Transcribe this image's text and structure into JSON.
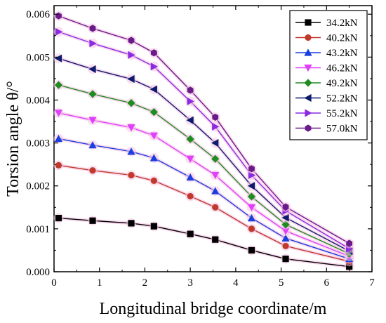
{
  "chart_data": {
    "type": "line",
    "title": "",
    "xlabel": "Longitudinal bridge coordinate/m",
    "ylabel": "Torsion angle θ/°",
    "xlim": [
      0,
      7
    ],
    "ylim": [
      0,
      0.0062
    ],
    "x_ticks": [
      "0",
      "1",
      "2",
      "3",
      "4",
      "5",
      "6",
      "7"
    ],
    "y_ticks": [
      "0.000",
      "0.001",
      "0.002",
      "0.003",
      "0.004",
      "0.005",
      "0.006"
    ],
    "legend_position": "top-right",
    "grid": false,
    "x": [
      0.1,
      0.85,
      1.7,
      2.2,
      3.0,
      3.55,
      4.35,
      5.1,
      6.5
    ],
    "series": [
      {
        "name": "34.2kN",
        "color": "#000000",
        "marker": "square",
        "values": [
          0.00125,
          0.00119,
          0.00113,
          0.00106,
          0.00088,
          0.00075,
          0.0005,
          0.0003,
          0.00012
        ]
      },
      {
        "name": "40.2kN",
        "color": "#c0392b",
        "marker": "circle",
        "values": [
          0.00248,
          0.00236,
          0.00225,
          0.00212,
          0.00176,
          0.0015,
          0.001,
          0.0006,
          0.00024
        ]
      },
      {
        "name": "43.2kN",
        "color": "#1a3fe0",
        "marker": "triangle-up",
        "values": [
          0.0031,
          0.00295,
          0.0028,
          0.00265,
          0.0022,
          0.00188,
          0.00125,
          0.00078,
          0.0003
        ]
      },
      {
        "name": "46.2kN",
        "color": "#e040fb",
        "marker": "triangle-down",
        "values": [
          0.0037,
          0.00353,
          0.00336,
          0.00317,
          0.00263,
          0.00225,
          0.0015,
          0.00095,
          0.00036
        ]
      },
      {
        "name": "49.2kN",
        "color": "#1e8c1e",
        "marker": "diamond",
        "values": [
          0.00435,
          0.00414,
          0.00393,
          0.00372,
          0.00309,
          0.00263,
          0.00175,
          0.0011,
          0.00042
        ]
      },
      {
        "name": "52.2kN",
        "color": "#0d1b6e",
        "marker": "triangle-left",
        "values": [
          0.00497,
          0.00472,
          0.00449,
          0.00425,
          0.00353,
          0.003,
          0.002,
          0.00126,
          0.00048
        ]
      },
      {
        "name": "55.2kN",
        "color": "#8a2be2",
        "marker": "triangle-right",
        "values": [
          0.00559,
          0.00532,
          0.00505,
          0.00478,
          0.00397,
          0.00338,
          0.00225,
          0.00142,
          0.00054
        ]
      },
      {
        "name": "57.0kN",
        "color": "#6a1b8a",
        "marker": "hexagon",
        "values": [
          0.00596,
          0.00567,
          0.00539,
          0.0051,
          0.00423,
          0.0036,
          0.0024,
          0.00151,
          0.00066
        ]
      }
    ]
  }
}
